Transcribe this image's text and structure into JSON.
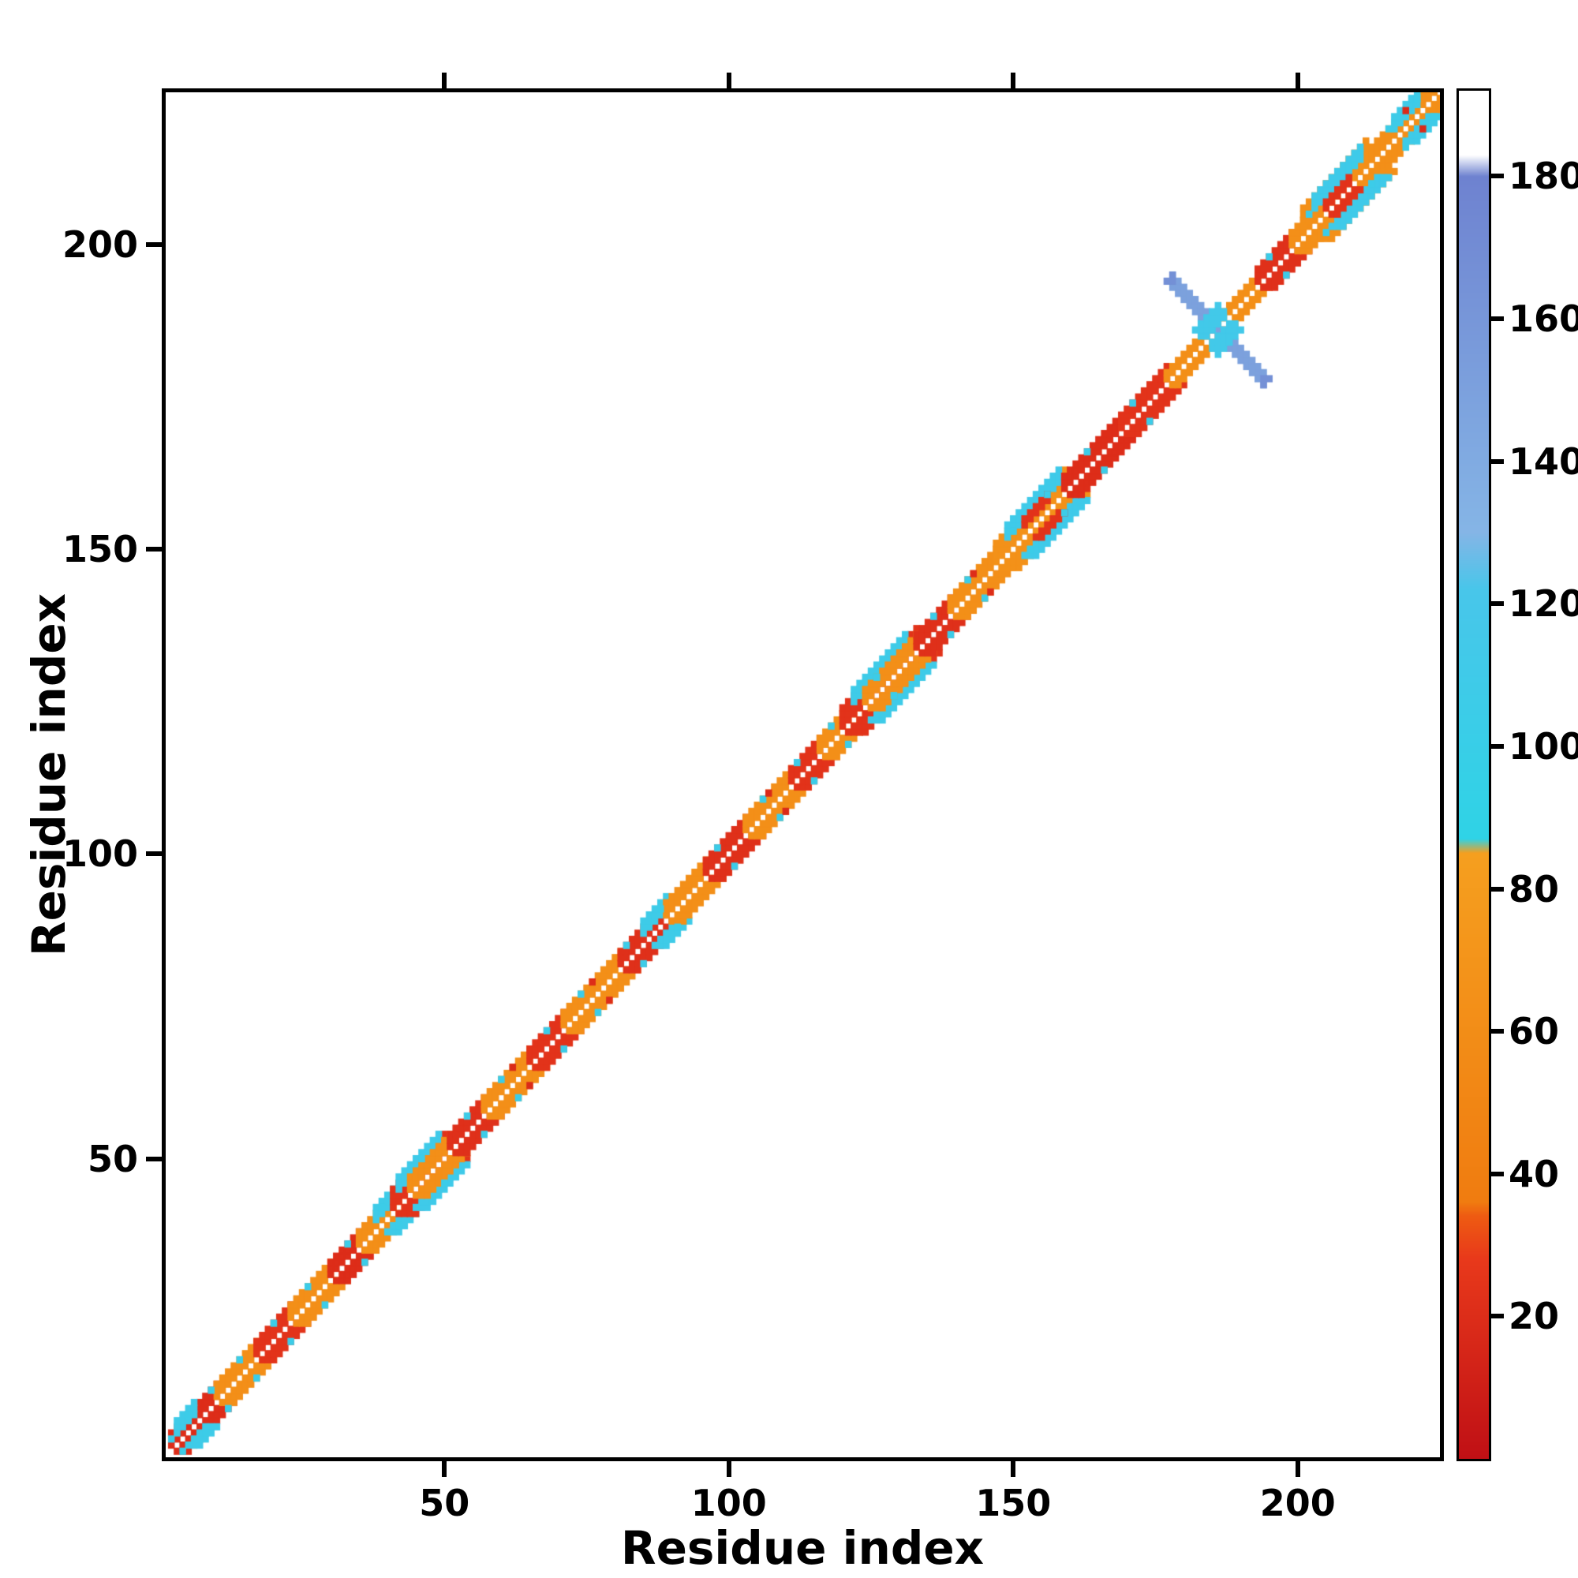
{
  "chart_data": {
    "type": "heatmap",
    "title": "",
    "xlabel": "Residue index",
    "ylabel": "Residue index",
    "x_range": [
      1,
      225
    ],
    "y_range": [
      1,
      225
    ],
    "x_ticks": [
      50,
      100,
      150,
      200
    ],
    "y_ticks": [
      50,
      100,
      150,
      200
    ],
    "grid": false,
    "legend_position": "colorbar-right",
    "colorbar": {
      "range": [
        0,
        192
      ],
      "ticks": [
        20,
        40,
        60,
        80,
        100,
        120,
        140,
        160,
        180
      ],
      "stops": [
        [
          0,
          "#c01015"
        ],
        [
          28,
          "#e8391b"
        ],
        [
          34,
          "#ee5b12"
        ],
        [
          36,
          "#f07c10"
        ],
        [
          85,
          "#f59f1f"
        ],
        [
          87,
          "#2fd3e6"
        ],
        [
          122,
          "#48c6ea"
        ],
        [
          130,
          "#85b5e6"
        ],
        [
          180,
          "#6e82d0"
        ],
        [
          183,
          "#ffffff"
        ],
        [
          192,
          "#ffffff"
        ]
      ]
    },
    "map": {
      "symmetric": true,
      "description": "Residue-residue contact map: contacts hug the main diagonal in red/orange/cyan segments; an antiparallel (anti-diagonal) blue hairpin cross is centered near residue 186.",
      "diagonal_bands": [
        [
          2,
          10,
          1,
          3,
          20
        ],
        [
          3,
          6,
          2,
          4,
          108
        ],
        [
          10,
          17,
          1,
          3,
          62
        ],
        [
          17,
          23,
          1,
          3,
          24
        ],
        [
          23,
          30,
          1,
          3,
          62
        ],
        [
          30,
          35,
          1,
          3,
          20
        ],
        [
          35,
          43,
          1,
          3,
          62
        ],
        [
          38,
          41,
          2,
          4,
          108
        ],
        [
          41,
          50,
          1,
          4,
          24
        ],
        [
          42,
          49,
          3,
          5,
          110
        ],
        [
          44,
          51,
          1,
          3,
          62
        ],
        [
          51,
          57,
          1,
          3,
          22
        ],
        [
          57,
          65,
          1,
          3,
          62
        ],
        [
          65,
          71,
          1,
          3,
          24
        ],
        [
          71,
          81,
          1,
          3,
          62
        ],
        [
          81,
          89,
          1,
          3,
          22
        ],
        [
          85,
          89,
          2,
          4,
          108
        ],
        [
          89,
          96,
          1,
          3,
          62
        ],
        [
          96,
          103,
          1,
          3,
          22
        ],
        [
          103,
          111,
          1,
          3,
          62
        ],
        [
          111,
          116,
          1,
          3,
          24
        ],
        [
          116,
          123,
          1,
          3,
          62
        ],
        [
          120,
          133,
          1,
          4,
          24
        ],
        [
          122,
          131,
          3,
          5,
          108
        ],
        [
          124,
          133,
          1,
          3,
          62
        ],
        [
          133,
          139,
          1,
          3,
          22
        ],
        [
          139,
          147,
          1,
          3,
          62
        ],
        [
          147,
          159,
          1,
          4,
          66
        ],
        [
          149,
          158,
          3,
          5,
          110
        ],
        [
          152,
          156,
          2,
          3,
          24
        ],
        [
          159,
          169,
          1,
          3,
          20
        ],
        [
          169,
          177,
          1,
          3,
          24
        ],
        [
          177,
          193,
          1,
          2,
          62
        ],
        [
          193,
          199,
          1,
          3,
          22
        ],
        [
          199,
          213,
          1,
          3,
          62
        ],
        [
          201,
          212,
          2,
          5,
          64
        ],
        [
          203,
          211,
          3,
          5,
          110
        ],
        [
          205,
          209,
          1,
          2,
          24
        ],
        [
          213,
          224,
          1,
          3,
          62
        ],
        [
          217,
          221,
          2,
          4,
          108
        ]
      ],
      "speckles": [
        [
          2,
          4,
          105
        ],
        [
          5,
          8,
          105
        ],
        [
          9,
          12,
          105
        ],
        [
          14,
          17,
          105
        ],
        [
          20,
          23,
          105
        ],
        [
          26,
          29,
          105
        ],
        [
          33,
          36,
          105
        ],
        [
          39,
          42,
          105
        ],
        [
          46,
          50,
          105
        ],
        [
          54,
          57,
          105
        ],
        [
          60,
          63,
          105
        ],
        [
          68,
          71,
          105
        ],
        [
          74,
          77,
          105
        ],
        [
          82,
          85,
          105
        ],
        [
          88,
          91,
          105
        ],
        [
          98,
          101,
          105
        ],
        [
          106,
          109,
          105
        ],
        [
          112,
          115,
          105
        ],
        [
          118,
          121,
          105
        ],
        [
          126,
          129,
          105
        ],
        [
          136,
          139,
          105
        ],
        [
          142,
          145,
          105
        ],
        [
          150,
          153,
          105
        ],
        [
          156,
          159,
          105
        ],
        [
          163,
          166,
          105
        ],
        [
          171,
          174,
          105
        ],
        [
          195,
          198,
          105
        ],
        [
          202,
          205,
          105
        ],
        [
          210,
          213,
          105
        ],
        [
          216,
          219,
          105
        ],
        [
          221,
          224,
          105
        ],
        [
          62,
          65,
          18
        ],
        [
          76,
          79,
          20
        ],
        [
          107,
          110,
          18
        ],
        [
          143,
          146,
          20
        ],
        [
          219,
          222,
          18
        ]
      ],
      "hairpin": {
        "sum": 372,
        "i0": 178,
        "i1": 194,
        "width": 2,
        "value": 150,
        "tip_value": 166,
        "tips": [
          [
            178,
            194
          ],
          [
            194,
            178
          ]
        ],
        "blob": {
          "lo": 182,
          "hi": 190,
          "value": 114
        }
      }
    }
  }
}
